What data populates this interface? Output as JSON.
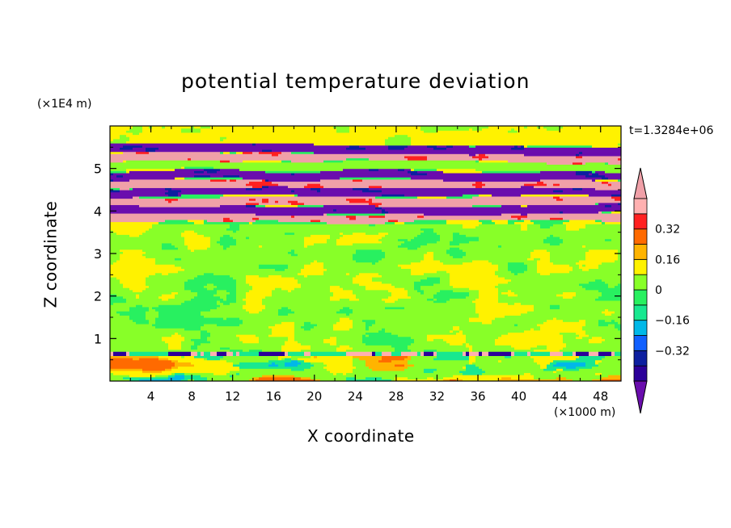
{
  "chart_data": {
    "type": "heatmap",
    "title": "potential temperature deviation",
    "time_label": "t=1.3284e+06",
    "x_axis": {
      "label": "X coordinate",
      "unit_label": "(×1000 m)",
      "range": [
        0,
        50
      ],
      "ticks": [
        "4",
        "8",
        "12",
        "16",
        "20",
        "24",
        "28",
        "32",
        "36",
        "40",
        "44",
        "48"
      ],
      "tick_values": [
        4,
        8,
        12,
        16,
        20,
        24,
        28,
        32,
        36,
        40,
        44,
        48
      ]
    },
    "y_axis": {
      "label": "Z coordinate",
      "unit_label": "(×1E4 m)",
      "range": [
        0,
        6
      ],
      "ticks": [
        "1",
        "2",
        "3",
        "4",
        "5"
      ],
      "tick_values": [
        1,
        2,
        3,
        4,
        5
      ]
    },
    "colorbar": {
      "levels": [
        -0.48,
        -0.4,
        -0.32,
        -0.24,
        -0.16,
        -0.08,
        0,
        0.08,
        0.16,
        0.24,
        0.32,
        0.4,
        0.48
      ],
      "colors": [
        "#6a0dad",
        "#2b0099",
        "#0d1fa0",
        "#1060ff",
        "#00b8e8",
        "#18e890",
        "#28f060",
        "#88ff28",
        "#fff200",
        "#ffb400",
        "#ff6a00",
        "#ff2020",
        "#ffb0b0",
        "#f0a0a8"
      ],
      "labels": [
        "0.32",
        "0.16",
        "0",
        "−0.16",
        "−0.32"
      ],
      "label_values": [
        0.32,
        0.16,
        0,
        -0.16,
        -0.32
      ]
    },
    "bands": [
      {
        "z": [
          5.35,
          5.55
        ],
        "value": -0.5
      },
      {
        "z": [
          5.15,
          5.35
        ],
        "value": 0.5
      },
      {
        "z": [
          4.95,
          5.15
        ],
        "value": 0.0
      },
      {
        "z": [
          4.75,
          4.95
        ],
        "value": -0.5
      },
      {
        "z": [
          4.55,
          4.75
        ],
        "value": 0.5
      },
      {
        "z": [
          4.35,
          4.55
        ],
        "value": -0.5
      },
      {
        "z": [
          4.15,
          4.35
        ],
        "value": 0.5
      },
      {
        "z": [
          3.95,
          4.15
        ],
        "value": -0.5
      },
      {
        "z": [
          3.75,
          3.95
        ],
        "value": 0.5
      },
      {
        "z": [
          0.6,
          0.7
        ],
        "value": -0.4
      }
    ]
  }
}
